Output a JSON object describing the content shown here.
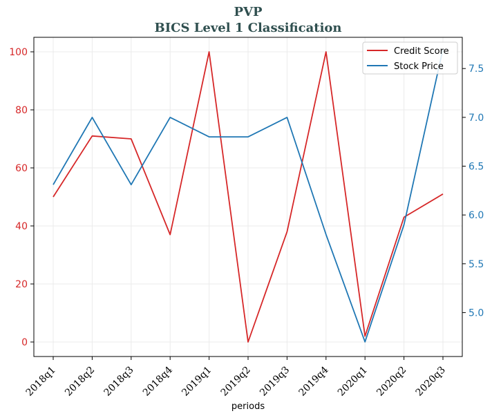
{
  "chart_data": {
    "type": "line",
    "title": "PVP",
    "subtitle": "BICS Level 1 Classification",
    "xlabel": "periods",
    "ylabel_left": "",
    "ylabel_right": "",
    "categories": [
      "2018q1",
      "2018q2",
      "2018q3",
      "2018q4",
      "2019q1",
      "2019q2",
      "2019q3",
      "2019q4",
      "2020q1",
      "2020q2",
      "2020q3"
    ],
    "series": [
      {
        "name": "Credit Score",
        "axis": "left",
        "color": "#d62728",
        "values": [
          50,
          71,
          70,
          37,
          100,
          0,
          38,
          100,
          2,
          43,
          51
        ]
      },
      {
        "name": "Stock Price",
        "axis": "right",
        "color": "#1f77b4",
        "values": [
          6.31,
          7.0,
          6.31,
          7.0,
          6.8,
          6.8,
          7.0,
          5.8,
          4.7,
          5.9,
          7.7
        ]
      }
    ],
    "ylim_left": [
      -5,
      105
    ],
    "yticks_left": [
      0,
      20,
      40,
      60,
      80,
      100
    ],
    "ylim_right": [
      4.55,
      7.82
    ],
    "yticks_right": [
      5.0,
      5.5,
      6.0,
      6.5,
      7.0,
      7.5
    ],
    "grid": true,
    "legend_position": "top-right",
    "left_axis_color": "#d62728",
    "right_axis_color": "#1f77b4"
  }
}
